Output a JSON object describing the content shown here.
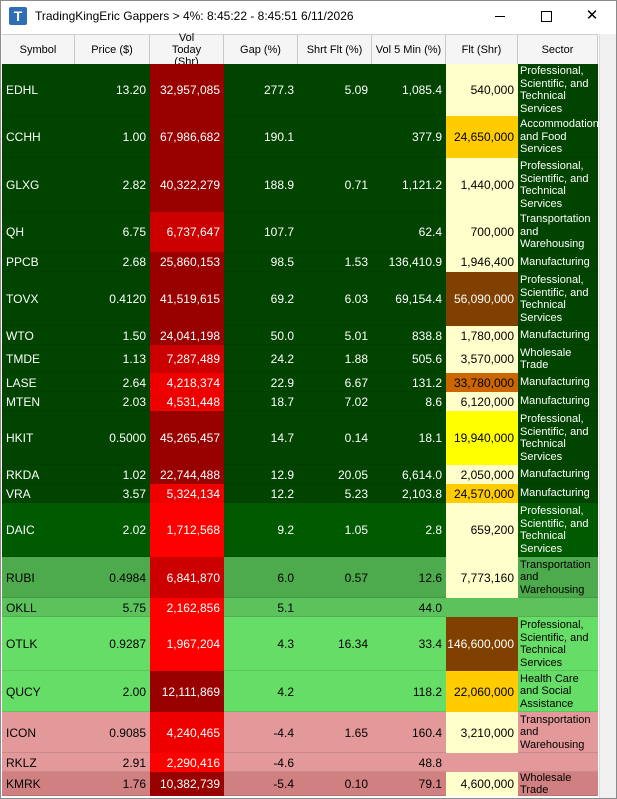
{
  "window": {
    "title": "TradingKingEric Gappers > 4%:  8:45:22 - 8:45:51   6/11/2026",
    "icon_letter": "T",
    "icon_name": "app-t-icon",
    "minimize_icon": "minimize-icon",
    "maximize_icon": "maximize-icon",
    "close_icon": "close-icon"
  },
  "columns": [
    {
      "key": "symbol",
      "label": "Symbol"
    },
    {
      "key": "price",
      "label": "Price ($)"
    },
    {
      "key": "vol",
      "label": "Vol Today (Shr)"
    },
    {
      "key": "gap",
      "label": "Gap (%)"
    },
    {
      "key": "shrt",
      "label": "Shrt Flt (%)"
    },
    {
      "key": "vol5",
      "label": "Vol 5 Min (%)"
    },
    {
      "key": "flt",
      "label": "Flt (Shr)"
    },
    {
      "key": "sector",
      "label": "Sector"
    }
  ],
  "colors": {
    "dark_green": "#004400",
    "medium_green": "#006600",
    "light_green_1": "#4daa4d",
    "light_green_2": "#5cc35c",
    "light_green_3": "#66dd66",
    "pink": "#e39999",
    "pink_dark": "#d08080",
    "vol_dark_red": "#990000",
    "vol_red": "#cc0000",
    "vol_bright_red": "#ff0000",
    "flt_pale": "#ffffcc",
    "flt_yellow": "#ffff00",
    "flt_gold": "#ffcc00",
    "flt_orange": "#cc6600",
    "flt_brown": "#804000"
  },
  "rows": [
    {
      "symbol": "EDHL",
      "price": "13.20",
      "vol": "32,957,085",
      "gap": "277.3",
      "shrt": "5.09",
      "vol5": "1,085.4",
      "flt": "540,000",
      "sector": "Professional, Scientific, and Technical Services",
      "bg": "#004400",
      "vol_bg": "#990000",
      "flt_bg": "#ffffcc",
      "height": 52
    },
    {
      "symbol": "CCHH",
      "price": "1.00",
      "vol": "67,986,682",
      "gap": "190.1",
      "shrt": "",
      "vol5": "377.9",
      "flt": "24,650,000",
      "sector": "Accommodation and Food Services",
      "bg": "#004400",
      "vol_bg": "#990000",
      "flt_bg": "#ffcc00",
      "height": 42
    },
    {
      "symbol": "GLXG",
      "price": "2.82",
      "vol": "40,322,279",
      "gap": "188.9",
      "shrt": "0.71",
      "vol5": "1,121.2",
      "flt": "1,440,000",
      "sector": "Professional, Scientific, and Technical Services",
      "bg": "#004400",
      "vol_bg": "#990000",
      "flt_bg": "#ffffcc",
      "height": 54
    },
    {
      "symbol": "QH",
      "price": "6.75",
      "vol": "6,737,647",
      "gap": "107.7",
      "shrt": "",
      "vol5": "62.4",
      "flt": "700,000",
      "sector": "Transportation and Warehousing",
      "bg": "#004400",
      "vol_bg": "#cc0000",
      "flt_bg": "#ffffcc",
      "height": 40
    },
    {
      "symbol": "PPCB",
      "price": "2.68",
      "vol": "25,860,153",
      "gap": "98.5",
      "shrt": "1.53",
      "vol5": "136,410.9",
      "flt": "1,946,400",
      "sector": "Manufacturing",
      "bg": "#004400",
      "vol_bg": "#990000",
      "flt_bg": "#ffffcc",
      "height": 20
    },
    {
      "symbol": "TOVX",
      "price": "0.4120",
      "vol": "41,519,615",
      "gap": "69.2",
      "shrt": "6.03",
      "vol5": "69,154.4",
      "flt": "56,090,000",
      "sector": "Professional, Scientific, and Technical Services",
      "bg": "#004400",
      "vol_bg": "#990000",
      "flt_bg": "#804000",
      "flt_color": "#ffffff",
      "height": 54
    },
    {
      "symbol": "WTO",
      "price": "1.50",
      "vol": "24,041,198",
      "gap": "50.0",
      "shrt": "5.01",
      "vol5": "838.8",
      "flt": "1,780,000",
      "sector": "Manufacturing",
      "bg": "#004400",
      "vol_bg": "#990000",
      "flt_bg": "#ffffcc",
      "height": 19
    },
    {
      "symbol": "TMDE",
      "price": "1.13",
      "vol": "7,287,489",
      "gap": "24.2",
      "shrt": "1.88",
      "vol5": "505.6",
      "flt": "3,570,000",
      "sector": "Wholesale Trade",
      "bg": "#004400",
      "vol_bg": "#cc0000",
      "flt_bg": "#ffffcc",
      "height": 28
    },
    {
      "symbol": "LASE",
      "price": "2.64",
      "vol": "4,218,374",
      "gap": "22.9",
      "shrt": "6.67",
      "vol5": "131.2",
      "flt": "33,780,000",
      "sector": "Manufacturing",
      "bg": "#004400",
      "vol_bg": "#ee0000",
      "flt_bg": "#cc6600",
      "height": 19
    },
    {
      "symbol": "MTEN",
      "price": "2.03",
      "vol": "4,531,448",
      "gap": "18.7",
      "shrt": "7.02",
      "vol5": "8.6",
      "flt": "6,120,000",
      "sector": "Manufacturing",
      "bg": "#004400",
      "vol_bg": "#ee0000",
      "flt_bg": "#ffffcc",
      "height": 19
    },
    {
      "symbol": "HKIT",
      "price": "0.5000",
      "vol": "45,265,457",
      "gap": "14.7",
      "shrt": "0.14",
      "vol5": "18.1",
      "flt": "19,940,000",
      "sector": "Professional, Scientific, and Technical Services",
      "bg": "#004400",
      "vol_bg": "#990000",
      "flt_bg": "#ffff00",
      "height": 54
    },
    {
      "symbol": "RKDA",
      "price": "1.02",
      "vol": "22,744,488",
      "gap": "12.9",
      "shrt": "20.05",
      "vol5": "6,614.0",
      "flt": "2,050,000",
      "sector": "Manufacturing",
      "bg": "#004400",
      "vol_bg": "#990000",
      "flt_bg": "#ffffcc",
      "height": 19
    },
    {
      "symbol": "VRA",
      "price": "3.57",
      "vol": "5,324,134",
      "gap": "12.2",
      "shrt": "5.23",
      "vol5": "2,103.8",
      "flt": "24,570,000",
      "sector": "Manufacturing",
      "bg": "#004400",
      "vol_bg": "#ee0000",
      "flt_bg": "#ffcc00",
      "height": 19
    },
    {
      "symbol": "DAIC",
      "price": "2.02",
      "vol": "1,712,568",
      "gap": "9.2",
      "shrt": "1.05",
      "vol5": "2.8",
      "flt": "659,200",
      "sector": "Professional, Scientific, and Technical Services",
      "bg": "#005a00",
      "vol_bg": "#ff0000",
      "flt_bg": "#ffffcc",
      "height": 54
    },
    {
      "symbol": "RUBI",
      "price": "0.4984",
      "vol": "6,841,870",
      "gap": "6.0",
      "shrt": "0.57",
      "vol5": "12.6",
      "flt": "7,773,160",
      "sector": "Transportation and Warehousing",
      "bg": "#4daa4d",
      "vol_bg": "#cc0000",
      "flt_bg": "#ffffcc",
      "height": 41
    },
    {
      "symbol": "OKLL",
      "price": "5.75",
      "vol": "2,162,856",
      "gap": "5.1",
      "shrt": "",
      "vol5": "44.0",
      "flt": "",
      "sector": "",
      "bg": "#5cc35c",
      "vol_bg": "#ff0000",
      "flt_bg": "#5cc35c",
      "height": 19
    },
    {
      "symbol": "OTLK",
      "price": "0.9287",
      "vol": "1,967,204",
      "gap": "4.3",
      "shrt": "16.34",
      "vol5": "33.4",
      "flt": "146,600,000",
      "sector": "Professional, Scientific, and Technical Services",
      "bg": "#66dd66",
      "vol_bg": "#ff0000",
      "flt_bg": "#804000",
      "flt_color": "#ffffff",
      "height": 54
    },
    {
      "symbol": "QUCY",
      "price": "2.00",
      "vol": "12,111,869",
      "gap": "4.2",
      "shrt": "",
      "vol5": "118.2",
      "flt": "22,060,000",
      "sector": "Health Care and Social Assistance",
      "bg": "#66dd66",
      "vol_bg": "#990000",
      "flt_bg": "#ffcc00",
      "height": 41
    },
    {
      "symbol": "ICON",
      "price": "0.9085",
      "vol": "4,240,465",
      "gap": "-4.4",
      "shrt": "1.65",
      "vol5": "160.4",
      "flt": "3,210,000",
      "sector": "Transportation and Warehousing",
      "bg": "#e39999",
      "vol_bg": "#ee0000",
      "flt_bg": "#ffffcc",
      "height": 41
    },
    {
      "symbol": "RKLZ",
      "price": "2.91",
      "vol": "2,290,416",
      "gap": "-4.6",
      "shrt": "",
      "vol5": "48.8",
      "flt": "",
      "sector": "",
      "bg": "#e39999",
      "vol_bg": "#ff0000",
      "flt_bg": "#e39999",
      "height": 19
    },
    {
      "symbol": "KMRK",
      "price": "1.76",
      "vol": "10,382,739",
      "gap": "-5.4",
      "shrt": "0.10",
      "vol5": "79.1",
      "flt": "4,600,000",
      "sector": "Wholesale Trade",
      "bg": "#d08080",
      "vol_bg": "#990000",
      "flt_bg": "#ffffcc",
      "height": 24
    }
  ]
}
